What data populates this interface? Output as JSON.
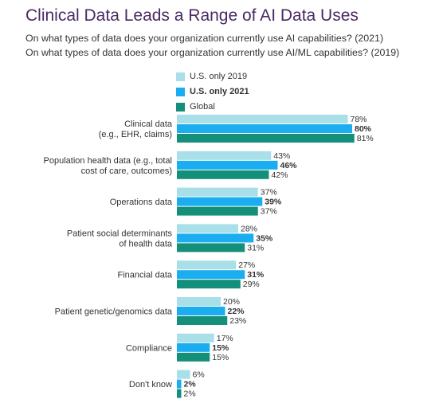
{
  "title": "Clinical Data Leads a Range of AI Data Uses",
  "subtitles": [
    "On what types of data does your organization currently use AI capabilities? (2021)",
    "On what types of data does your organization currently use AI/ML capabilities? (2019)"
  ],
  "colors": {
    "us2019": "#a8dfe8",
    "us2021": "#1aaef0",
    "global": "#138f7a",
    "title": "#4a2a63"
  },
  "chart_data": {
    "type": "bar",
    "orientation": "horizontal",
    "categories": [
      [
        "Clinical data",
        "(e.g., EHR, claims)"
      ],
      [
        "Population health data (e.g., total",
        "cost of care, outcomes)"
      ],
      [
        "Operations data"
      ],
      [
        "Patient social determinants",
        "of health data"
      ],
      [
        "Financial data"
      ],
      [
        "Patient genetic/genomics data"
      ],
      [
        "Compliance"
      ],
      [
        "Don't know"
      ]
    ],
    "series": [
      {
        "name": "U.S. only 2019",
        "values": [
          78,
          43,
          37,
          28,
          27,
          20,
          17,
          6
        ],
        "color": "#a8dfe8",
        "bold": false
      },
      {
        "name": "U.S. only 2021",
        "values": [
          80,
          46,
          39,
          35,
          31,
          22,
          15,
          2
        ],
        "color": "#1aaef0",
        "bold": true
      },
      {
        "name": "Global",
        "values": [
          81,
          42,
          37,
          31,
          29,
          23,
          15,
          2
        ],
        "color": "#138f7a",
        "bold": false
      }
    ],
    "value_suffix": "%",
    "xlim": [
      0,
      100
    ],
    "grid": false,
    "legend_position": "top-left"
  }
}
